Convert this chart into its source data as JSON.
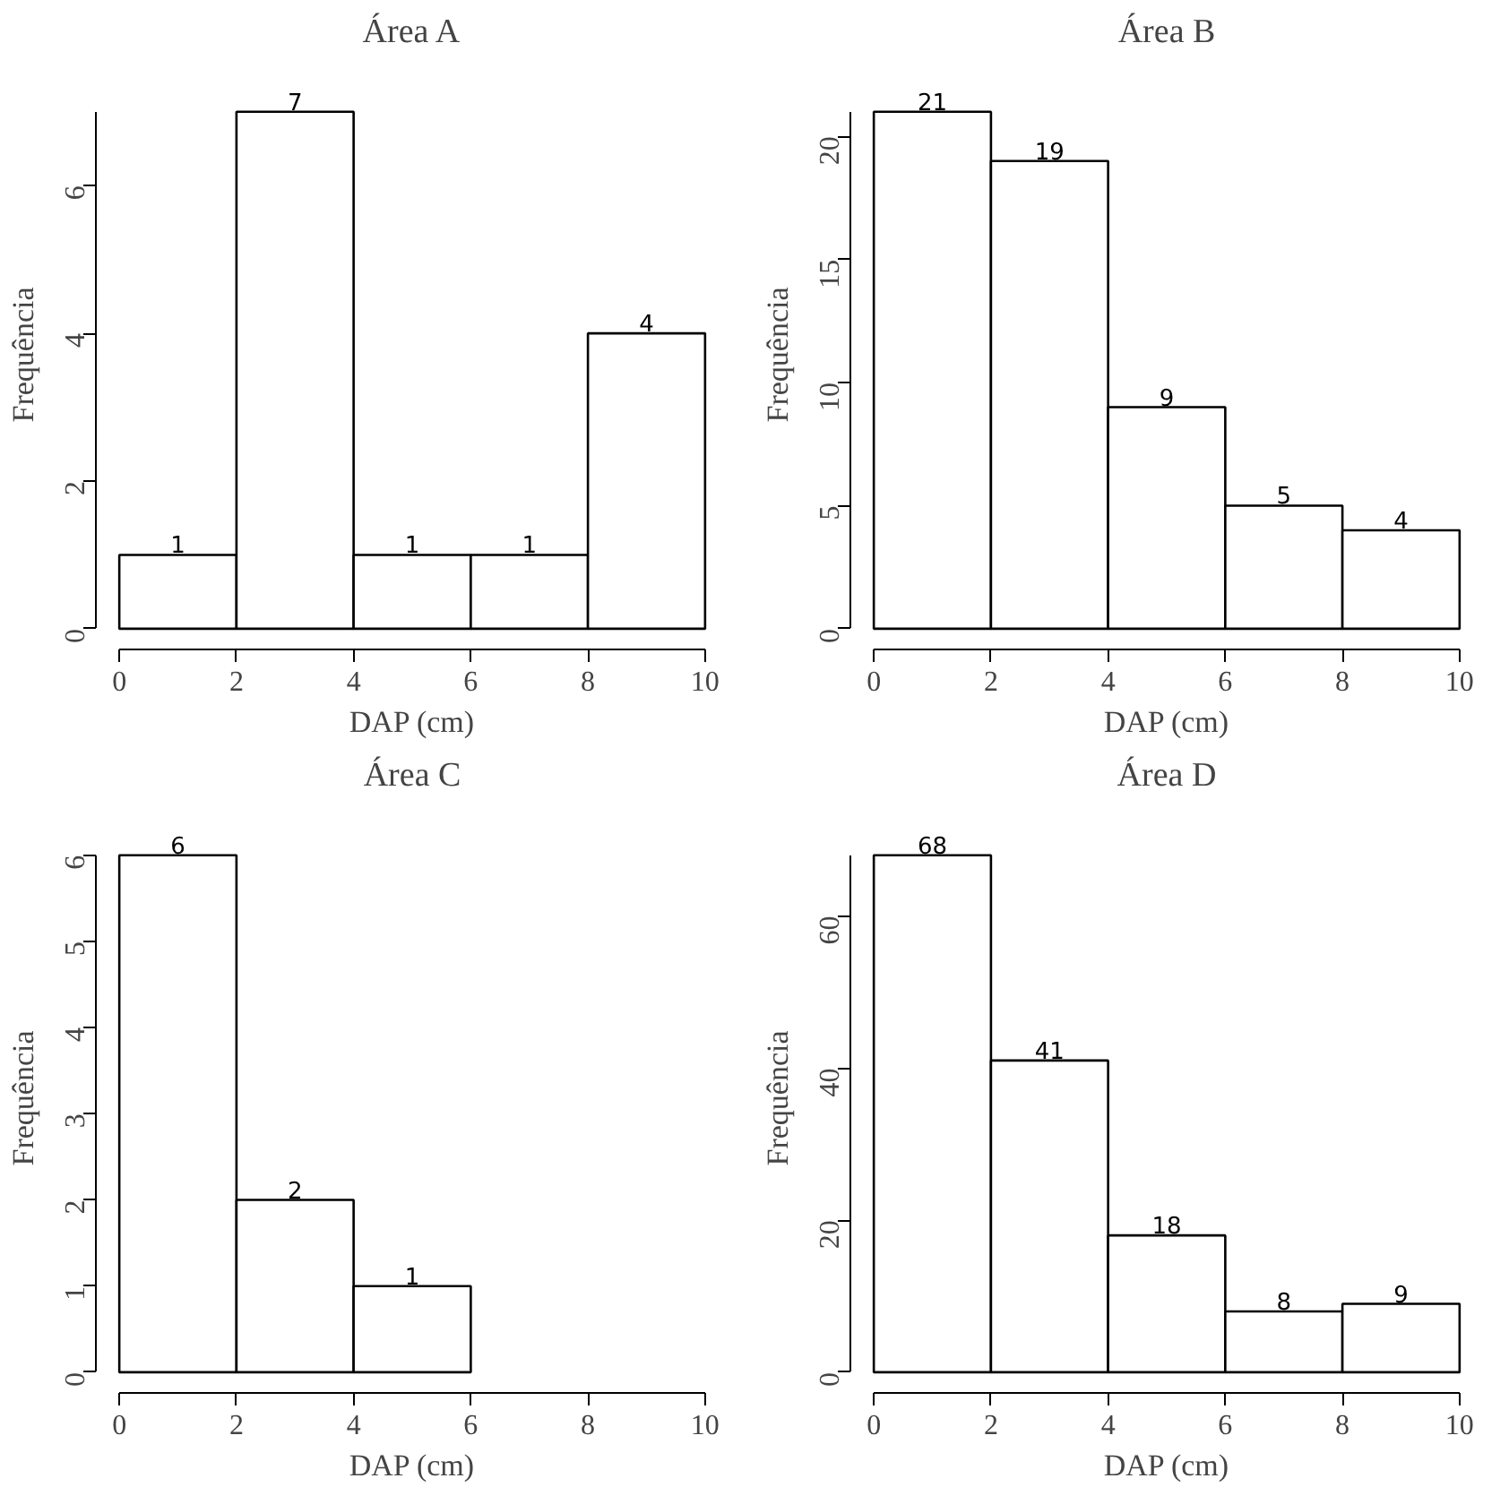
{
  "chart_data": [
    {
      "type": "histogram",
      "title": "Área A",
      "xlabel": "DAP (cm)",
      "ylabel": "Frequência",
      "bins": [
        0,
        2,
        4,
        6,
        8,
        10
      ],
      "values": [
        1,
        7,
        1,
        1,
        4
      ],
      "color": "#ffffff",
      "xlim": [
        0,
        10
      ],
      "xticks": [
        0,
        2,
        4,
        6,
        8,
        10
      ],
      "ylim": [
        0,
        7
      ],
      "yticks": [
        0,
        2,
        4,
        6
      ],
      "data_labels": true
    },
    {
      "type": "histogram",
      "title": "Área B",
      "xlabel": "DAP (cm)",
      "ylabel": "Frequência",
      "bins": [
        0,
        2,
        4,
        6,
        8,
        10
      ],
      "values": [
        21,
        19,
        9,
        5,
        4
      ],
      "color": "#ffffff",
      "xlim": [
        0,
        10
      ],
      "xticks": [
        0,
        2,
        4,
        6,
        8,
        10
      ],
      "ylim": [
        0,
        21
      ],
      "yticks": [
        0,
        5,
        10,
        15,
        20
      ],
      "data_labels": true
    },
    {
      "type": "histogram",
      "title": "Área C",
      "xlabel": "DAP (cm)",
      "ylabel": "Frequência",
      "bins": [
        0,
        2,
        4,
        6
      ],
      "values": [
        6,
        2,
        1
      ],
      "color": "#ffffff",
      "xlim": [
        0,
        10
      ],
      "xticks": [
        0,
        2,
        4,
        6,
        8,
        10
      ],
      "ylim": [
        0,
        6
      ],
      "yticks": [
        0,
        1,
        2,
        3,
        4,
        5,
        6
      ],
      "data_labels": true
    },
    {
      "type": "histogram",
      "title": "Área D",
      "xlabel": "DAP (cm)",
      "ylabel": "Frequência",
      "bins": [
        0,
        2,
        4,
        6,
        8,
        10
      ],
      "values": [
        68,
        41,
        18,
        8,
        9
      ],
      "color": "#ffffff",
      "xlim": [
        0,
        10
      ],
      "xticks": [
        0,
        2,
        4,
        6,
        8,
        10
      ],
      "ylim": [
        0,
        68
      ],
      "yticks": [
        0,
        20,
        40,
        60
      ],
      "data_labels": true
    }
  ]
}
